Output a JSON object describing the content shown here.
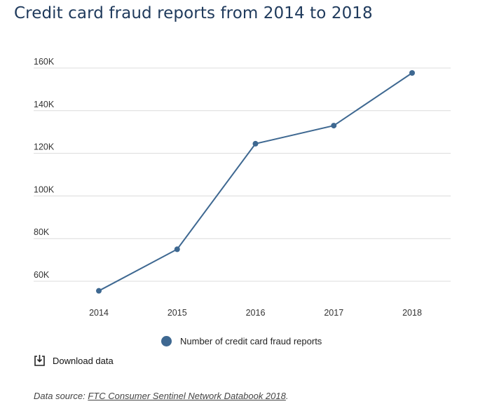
{
  "title": "Credit card fraud reports from 2014 to 2018",
  "chart_data": {
    "type": "line",
    "title": "Credit card fraud reports from 2014 to 2018",
    "xlabel": "",
    "ylabel": "",
    "x": [
      "2014",
      "2015",
      "2016",
      "2017",
      "2018"
    ],
    "series": [
      {
        "name": "Number of credit card fraud reports",
        "values": [
          55500,
          75000,
          124500,
          133000,
          157700
        ],
        "color": "#3e6891"
      }
    ],
    "ylim": [
      50000,
      160000
    ],
    "yticks": [
      60000,
      80000,
      100000,
      120000,
      140000,
      160000
    ],
    "ytick_labels": [
      "60K",
      "80K",
      "100K",
      "120K",
      "140K",
      "160K"
    ],
    "grid": true,
    "legend_position": "bottom"
  },
  "legend": {
    "label": "Number of credit card fraud reports"
  },
  "download": {
    "label": "Download data",
    "icon": "download-icon"
  },
  "source": {
    "prefix": "Data source: ",
    "link_text": "FTC Consumer Sentinel Network Databook 2018",
    "suffix": "."
  }
}
